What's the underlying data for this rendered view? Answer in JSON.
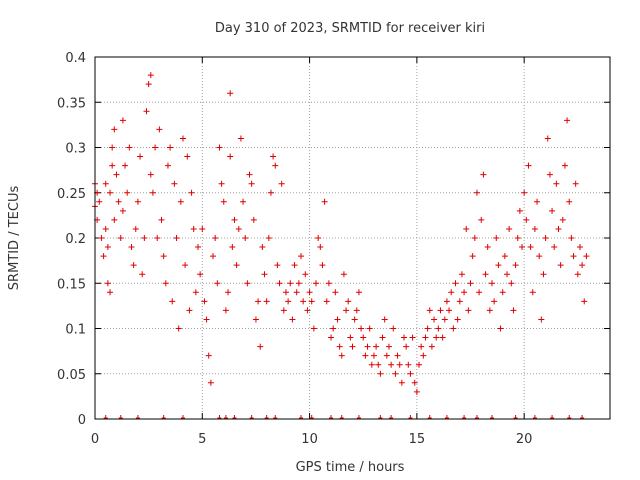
{
  "chart_data": {
    "type": "scatter",
    "title": "Day 310 of 2023, SRMTID for receiver kiri",
    "xlabel": "GPS time / hours",
    "ylabel": "SRMTID / TECUs",
    "xlim": [
      0,
      24
    ],
    "ylim": [
      0,
      0.4
    ],
    "xticks": [
      0,
      5,
      10,
      15,
      20
    ],
    "xtick_labels": [
      "0",
      "5",
      "10",
      "15",
      "20"
    ],
    "yticks": [
      0,
      0.05,
      0.1,
      0.15,
      0.2,
      0.25,
      0.3,
      0.35,
      0.4
    ],
    "ytick_labels": [
      "0",
      "0.05",
      "0.1",
      "0.15",
      "0.2",
      "0.25",
      "0.3",
      "0.35",
      "0.4"
    ],
    "grid": true,
    "marker": "plus",
    "color": "#e00000",
    "series": [
      {
        "name": "SRMTID",
        "points": [
          [
            0.0,
            0.235
          ],
          [
            0.0,
            0.26
          ],
          [
            0.1,
            0.22
          ],
          [
            0.1,
            0.25
          ],
          [
            0.2,
            0.24
          ],
          [
            0.3,
            0.2
          ],
          [
            0.4,
            0.18
          ],
          [
            0.5,
            0.26
          ],
          [
            0.5,
            0.21
          ],
          [
            0.6,
            0.15
          ],
          [
            0.6,
            0.19
          ],
          [
            0.7,
            0.14
          ],
          [
            0.7,
            0.25
          ],
          [
            0.8,
            0.28
          ],
          [
            0.8,
            0.3
          ],
          [
            0.9,
            0.22
          ],
          [
            0.9,
            0.32
          ],
          [
            1.0,
            0.27
          ],
          [
            1.1,
            0.24
          ],
          [
            1.2,
            0.2
          ],
          [
            1.3,
            0.33
          ],
          [
            1.3,
            0.23
          ],
          [
            1.4,
            0.28
          ],
          [
            1.5,
            0.25
          ],
          [
            1.6,
            0.3
          ],
          [
            1.7,
            0.19
          ],
          [
            1.8,
            0.17
          ],
          [
            1.9,
            0.21
          ],
          [
            2.0,
            0.24
          ],
          [
            2.1,
            0.29
          ],
          [
            2.2,
            0.16
          ],
          [
            2.3,
            0.2
          ],
          [
            2.4,
            0.34
          ],
          [
            2.5,
            0.37
          ],
          [
            2.6,
            0.38
          ],
          [
            2.6,
            0.27
          ],
          [
            2.7,
            0.25
          ],
          [
            2.8,
            0.3
          ],
          [
            2.9,
            0.2
          ],
          [
            3.0,
            0.32
          ],
          [
            3.1,
            0.22
          ],
          [
            3.2,
            0.18
          ],
          [
            3.3,
            0.15
          ],
          [
            3.4,
            0.28
          ],
          [
            3.5,
            0.3
          ],
          [
            3.6,
            0.13
          ],
          [
            3.7,
            0.26
          ],
          [
            3.8,
            0.2
          ],
          [
            3.9,
            0.1
          ],
          [
            4.0,
            0.24
          ],
          [
            4.1,
            0.31
          ],
          [
            4.2,
            0.17
          ],
          [
            4.3,
            0.29
          ],
          [
            4.4,
            0.12
          ],
          [
            4.5,
            0.25
          ],
          [
            4.6,
            0.21
          ],
          [
            4.7,
            0.14
          ],
          [
            4.8,
            0.19
          ],
          [
            4.9,
            0.16
          ],
          [
            5.0,
            0.21
          ],
          [
            5.1,
            0.13
          ],
          [
            5.2,
            0.11
          ],
          [
            5.3,
            0.07
          ],
          [
            5.4,
            0.04
          ],
          [
            5.5,
            0.18
          ],
          [
            5.6,
            0.2
          ],
          [
            5.7,
            0.15
          ],
          [
            5.8,
            0.3
          ],
          [
            5.9,
            0.26
          ],
          [
            6.0,
            0.24
          ],
          [
            6.1,
            0.12
          ],
          [
            6.2,
            0.14
          ],
          [
            6.3,
            0.36
          ],
          [
            6.3,
            0.29
          ],
          [
            6.4,
            0.19
          ],
          [
            6.5,
            0.22
          ],
          [
            6.6,
            0.17
          ],
          [
            6.7,
            0.21
          ],
          [
            6.8,
            0.31
          ],
          [
            6.9,
            0.24
          ],
          [
            7.0,
            0.2
          ],
          [
            7.1,
            0.15
          ],
          [
            7.2,
            0.27
          ],
          [
            7.3,
            0.26
          ],
          [
            7.4,
            0.22
          ],
          [
            7.5,
            0.11
          ],
          [
            7.6,
            0.13
          ],
          [
            7.7,
            0.08
          ],
          [
            7.8,
            0.19
          ],
          [
            7.9,
            0.16
          ],
          [
            8.0,
            0.13
          ],
          [
            8.1,
            0.2
          ],
          [
            8.2,
            0.25
          ],
          [
            8.3,
            0.29
          ],
          [
            8.4,
            0.28
          ],
          [
            8.5,
            0.17
          ],
          [
            8.6,
            0.15
          ],
          [
            8.7,
            0.26
          ],
          [
            8.8,
            0.12
          ],
          [
            8.9,
            0.14
          ],
          [
            9.0,
            0.13
          ],
          [
            9.1,
            0.15
          ],
          [
            9.2,
            0.11
          ],
          [
            9.3,
            0.17
          ],
          [
            9.4,
            0.14
          ],
          [
            9.5,
            0.15
          ],
          [
            9.6,
            0.18
          ],
          [
            9.7,
            0.13
          ],
          [
            9.8,
            0.16
          ],
          [
            9.9,
            0.12
          ],
          [
            10.0,
            0.14
          ],
          [
            10.1,
            0.13
          ],
          [
            10.2,
            0.1
          ],
          [
            10.3,
            0.15
          ],
          [
            10.4,
            0.2
          ],
          [
            10.5,
            0.19
          ],
          [
            10.6,
            0.17
          ],
          [
            10.7,
            0.24
          ],
          [
            10.8,
            0.13
          ],
          [
            10.9,
            0.15
          ],
          [
            11.0,
            0.09
          ],
          [
            11.1,
            0.1
          ],
          [
            11.2,
            0.14
          ],
          [
            11.3,
            0.11
          ],
          [
            11.4,
            0.08
          ],
          [
            11.5,
            0.07
          ],
          [
            11.6,
            0.16
          ],
          [
            11.7,
            0.12
          ],
          [
            11.8,
            0.13
          ],
          [
            11.9,
            0.09
          ],
          [
            12.0,
            0.08
          ],
          [
            12.1,
            0.11
          ],
          [
            12.2,
            0.12
          ],
          [
            12.3,
            0.14
          ],
          [
            12.4,
            0.1
          ],
          [
            12.5,
            0.09
          ],
          [
            12.6,
            0.07
          ],
          [
            12.7,
            0.08
          ],
          [
            12.8,
            0.1
          ],
          [
            12.9,
            0.06
          ],
          [
            13.0,
            0.07
          ],
          [
            13.1,
            0.08
          ],
          [
            13.2,
            0.06
          ],
          [
            13.3,
            0.05
          ],
          [
            13.4,
            0.09
          ],
          [
            13.5,
            0.11
          ],
          [
            13.6,
            0.07
          ],
          [
            13.7,
            0.08
          ],
          [
            13.8,
            0.06
          ],
          [
            13.9,
            0.1
          ],
          [
            14.0,
            0.05
          ],
          [
            14.1,
            0.07
          ],
          [
            14.2,
            0.06
          ],
          [
            14.3,
            0.04
          ],
          [
            14.4,
            0.09
          ],
          [
            14.5,
            0.08
          ],
          [
            14.6,
            0.06
          ],
          [
            14.7,
            0.05
          ],
          [
            14.8,
            0.09
          ],
          [
            14.9,
            0.04
          ],
          [
            15.0,
            0.03
          ],
          [
            15.1,
            0.06
          ],
          [
            15.2,
            0.08
          ],
          [
            15.3,
            0.07
          ],
          [
            15.4,
            0.09
          ],
          [
            15.5,
            0.1
          ],
          [
            15.6,
            0.12
          ],
          [
            15.7,
            0.08
          ],
          [
            15.8,
            0.11
          ],
          [
            15.9,
            0.09
          ],
          [
            16.0,
            0.1
          ],
          [
            16.1,
            0.12
          ],
          [
            16.2,
            0.09
          ],
          [
            16.3,
            0.11
          ],
          [
            16.4,
            0.13
          ],
          [
            16.5,
            0.12
          ],
          [
            16.6,
            0.14
          ],
          [
            16.7,
            0.1
          ],
          [
            16.8,
            0.15
          ],
          [
            16.9,
            0.11
          ],
          [
            17.0,
            0.13
          ],
          [
            17.1,
            0.16
          ],
          [
            17.2,
            0.14
          ],
          [
            17.3,
            0.21
          ],
          [
            17.4,
            0.12
          ],
          [
            17.5,
            0.15
          ],
          [
            17.6,
            0.18
          ],
          [
            17.7,
            0.2
          ],
          [
            17.8,
            0.25
          ],
          [
            17.9,
            0.14
          ],
          [
            18.0,
            0.22
          ],
          [
            18.1,
            0.27
          ],
          [
            18.2,
            0.16
          ],
          [
            18.3,
            0.19
          ],
          [
            18.4,
            0.12
          ],
          [
            18.5,
            0.15
          ],
          [
            18.6,
            0.13
          ],
          [
            18.7,
            0.2
          ],
          [
            18.8,
            0.17
          ],
          [
            18.9,
            0.1
          ],
          [
            19.0,
            0.14
          ],
          [
            19.1,
            0.18
          ],
          [
            19.2,
            0.16
          ],
          [
            19.3,
            0.21
          ],
          [
            19.4,
            0.15
          ],
          [
            19.5,
            0.12
          ],
          [
            19.6,
            0.17
          ],
          [
            19.7,
            0.2
          ],
          [
            19.8,
            0.23
          ],
          [
            19.9,
            0.19
          ],
          [
            20.0,
            0.25
          ],
          [
            20.1,
            0.22
          ],
          [
            20.2,
            0.28
          ],
          [
            20.3,
            0.19
          ],
          [
            20.4,
            0.14
          ],
          [
            20.5,
            0.21
          ],
          [
            20.6,
            0.24
          ],
          [
            20.7,
            0.18
          ],
          [
            20.8,
            0.11
          ],
          [
            20.9,
            0.16
          ],
          [
            21.0,
            0.2
          ],
          [
            21.1,
            0.31
          ],
          [
            21.2,
            0.27
          ],
          [
            21.3,
            0.23
          ],
          [
            21.4,
            0.19
          ],
          [
            21.5,
            0.26
          ],
          [
            21.6,
            0.21
          ],
          [
            21.7,
            0.17
          ],
          [
            21.8,
            0.22
          ],
          [
            21.9,
            0.28
          ],
          [
            22.0,
            0.33
          ],
          [
            22.1,
            0.24
          ],
          [
            22.2,
            0.2
          ],
          [
            22.3,
            0.18
          ],
          [
            22.4,
            0.26
          ],
          [
            22.5,
            0.16
          ],
          [
            22.6,
            0.19
          ],
          [
            22.7,
            0.17
          ],
          [
            22.8,
            0.13
          ],
          [
            22.9,
            0.18
          ]
        ]
      }
    ],
    "baseline_x": [
      0.5,
      1.2,
      2.0,
      3.2,
      4.1,
      5.8,
      6.1,
      6.5,
      7.3,
      8.0,
      8.4,
      9.6,
      10.1,
      11.0,
      11.5,
      12.3,
      13.3,
      13.8,
      14.7,
      15.6,
      16.4,
      17.2,
      17.8,
      18.5,
      19.6,
      20.5,
      21.3,
      22.1,
      22.7
    ]
  }
}
